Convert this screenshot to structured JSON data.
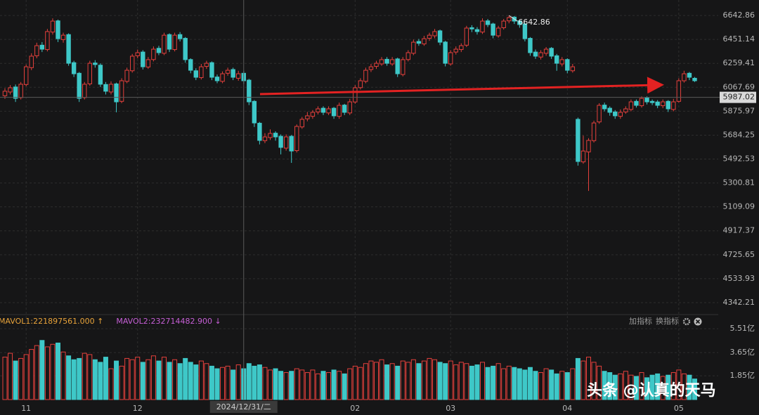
{
  "chart_data": {
    "type": "candlestick",
    "categories": [
      null,
      null,
      null,
      null,
      "11",
      null,
      null,
      null,
      null,
      null,
      null,
      null,
      null,
      null,
      null,
      null,
      null,
      null,
      null,
      null,
      null,
      null,
      null,
      null,
      null,
      "12",
      null,
      null,
      null,
      null,
      null,
      null,
      null,
      null,
      null,
      null,
      null,
      null,
      null,
      null,
      null,
      null,
      null,
      null,
      null,
      "2024/12/31/二",
      null,
      null,
      null,
      null,
      null,
      null,
      null,
      null,
      null,
      null,
      null,
      null,
      null,
      null,
      null,
      null,
      null,
      null,
      null,
      null,
      "02",
      null,
      null,
      null,
      null,
      null,
      null,
      null,
      null,
      null,
      null,
      null,
      null,
      null,
      null,
      null,
      null,
      null,
      "03",
      null,
      null,
      null,
      null,
      null,
      null,
      null,
      null,
      null,
      null,
      null,
      null,
      null,
      null,
      null,
      null,
      null,
      null,
      null,
      null,
      null,
      "04",
      null,
      null,
      null,
      null,
      null,
      null,
      null,
      null,
      null,
      null,
      null,
      null,
      null,
      null,
      null,
      null,
      null,
      null,
      null,
      null,
      "05",
      null,
      null,
      null
    ],
    "open": [
      6000,
      6030,
      6070,
      5985,
      6090,
      6225,
      6320,
      6405,
      6370,
      6510,
      6600,
      6450,
      6490,
      6265,
      6180,
      5985,
      6095,
      6262,
      6245,
      6090,
      6030,
      6095,
      5955,
      6115,
      6200,
      6320,
      6350,
      6230,
      6290,
      6380,
      6340,
      6490,
      6370,
      6490,
      6460,
      6290,
      6200,
      6145,
      6235,
      6265,
      6150,
      6115,
      6180,
      6210,
      6140,
      6180,
      6125,
      5955,
      5780,
      5640,
      5665,
      5700,
      5675,
      5580,
      5675,
      5560,
      5750,
      5815,
      5835,
      5870,
      5900,
      5862,
      5900,
      5835,
      5925,
      5862,
      5950,
      6065,
      6115,
      6210,
      6235,
      6255,
      6292,
      6255,
      6295,
      6170,
      6290,
      6340,
      6435,
      6415,
      6460,
      6480,
      6520,
      6430,
      6255,
      6350,
      6370,
      6405,
      6545,
      6530,
      6510,
      6600,
      6575,
      6480,
      6545,
      6600,
      6630,
      6600,
      6575,
      6460,
      6350,
      6310,
      6340,
      6380,
      6320,
      6255,
      6290,
      6200,
      5811,
      5470,
      5550,
      5640,
      5790,
      5925,
      5900,
      5870,
      5835,
      5870,
      5890,
      5955,
      5920,
      5985,
      5955,
      5950,
      5920,
      5955,
      5890,
      5955,
      6120,
      6180,
      6140
    ],
    "high": [
      6060,
      6085,
      6090,
      6110,
      6250,
      6340,
      6425,
      6430,
      6535,
      6620,
      6610,
      6505,
      6500,
      6280,
      6190,
      6110,
      6280,
      6285,
      6260,
      6110,
      6115,
      6105,
      6140,
      6225,
      6335,
      6370,
      6365,
      6310,
      6395,
      6400,
      6505,
      6500,
      6505,
      6510,
      6470,
      6300,
      6220,
      6255,
      6280,
      6275,
      6170,
      6195,
      6225,
      6225,
      6200,
      6200,
      6135,
      5965,
      5790,
      5700,
      5730,
      5715,
      5690,
      5690,
      5685,
      5770,
      5830,
      5870,
      5885,
      5915,
      5915,
      5915,
      5910,
      5945,
      5935,
      5975,
      6085,
      6140,
      6225,
      6255,
      6280,
      6310,
      6310,
      6310,
      6305,
      6310,
      6365,
      6450,
      6455,
      6480,
      6505,
      6535,
      6530,
      6440,
      6365,
      6395,
      6420,
      6560,
      6565,
      6550,
      6620,
      6615,
      6585,
      6560,
      6615,
      6642.86,
      6638,
      6610,
      6585,
      6470,
      6370,
      6365,
      6390,
      6390,
      6335,
      6310,
      6300,
      6255,
      5825,
      5680,
      5660,
      5800,
      5940,
      5945,
      5915,
      5885,
      5890,
      5915,
      5970,
      5970,
      5995,
      5995,
      5970,
      5965,
      5970,
      5965,
      5975,
      6140,
      6200,
      6190,
      6150
    ],
    "low": [
      5975,
      6010,
      5950,
      5970,
      6075,
      6205,
      6300,
      6350,
      6355,
      6490,
      6430,
      6425,
      6240,
      6150,
      5950,
      5970,
      6080,
      6225,
      6070,
      6010,
      6010,
      5867,
      5940,
      6100,
      6185,
      6300,
      6210,
      6215,
      6275,
      6325,
      6325,
      6350,
      6355,
      6435,
      6265,
      6180,
      6125,
      6130,
      6215,
      6125,
      6100,
      6100,
      6160,
      6125,
      6120,
      6095,
      5925,
      5750,
      5610,
      5620,
      5645,
      5640,
      5530,
      5560,
      5462,
      5545,
      5735,
      5795,
      5815,
      5850,
      5845,
      5845,
      5815,
      5815,
      5845,
      5845,
      5935,
      6050,
      6100,
      6190,
      6215,
      6240,
      6240,
      6240,
      6150,
      6155,
      6275,
      6325,
      6400,
      6400,
      6440,
      6460,
      6405,
      6235,
      6240,
      6330,
      6350,
      6390,
      6510,
      6490,
      6495,
      6550,
      6460,
      6465,
      6530,
      6580,
      6575,
      6545,
      6435,
      6320,
      6295,
      6290,
      6320,
      6295,
      6200,
      6235,
      6180,
      6185,
      5440,
      5455,
      5237,
      5625,
      5775,
      5875,
      5840,
      5815,
      5815,
      5855,
      5875,
      5905,
      5905,
      5930,
      5925,
      5900,
      5900,
      5870,
      5875,
      5945,
      6105,
      6125,
      6110
    ],
    "close": [
      6036,
      6064,
      5979,
      6092,
      6232,
      6317,
      6401,
      6373,
      6514,
      6598,
      6457,
      6485,
      6260,
      6176,
      5979,
      6092,
      6260,
      6250,
      6092,
      6036,
      6092,
      5951,
      6120,
      6204,
      6317,
      6345,
      6232,
      6289,
      6373,
      6345,
      6485,
      6373,
      6485,
      6457,
      6289,
      6204,
      6148,
      6232,
      6260,
      6148,
      6120,
      6176,
      6204,
      6148,
      6176,
      6120,
      5951,
      5782,
      5642,
      5670,
      5698,
      5670,
      5586,
      5670,
      5557,
      5754,
      5811,
      5839,
      5867,
      5895,
      5867,
      5895,
      5839,
      5923,
      5867,
      5951,
      6064,
      6120,
      6204,
      6232,
      6260,
      6289,
      6260,
      6289,
      6176,
      6289,
      6345,
      6429,
      6420,
      6457,
      6485,
      6514,
      6429,
      6260,
      6345,
      6373,
      6401,
      6542,
      6535,
      6514,
      6598,
      6570,
      6485,
      6542,
      6598,
      6626,
      6598,
      6570,
      6457,
      6345,
      6317,
      6345,
      6373,
      6317,
      6260,
      6289,
      6204,
      6232,
      5473,
      5557,
      5642,
      5782,
      5923,
      5895,
      5867,
      5839,
      5867,
      5895,
      5951,
      5923,
      5979,
      5951,
      5945,
      5923,
      5951,
      5895,
      5951,
      6120,
      6176,
      6148,
      6120
    ],
    "ylim": [
      4252,
      6767
    ],
    "yticks": [
      6642.86,
      6451.14,
      6259.41,
      6067.69,
      5875.97,
      5684.25,
      5492.53,
      5300.81,
      5109.09,
      4917.37,
      4725.65,
      4533.93,
      4342.21
    ],
    "grid": true,
    "up_color": "#e5403c",
    "down_color": "#3ec8c8",
    "crosshair_price": 5987.02,
    "volume": {
      "values": [
        3.3,
        3.6,
        3.0,
        3.2,
        3.5,
        3.9,
        4.2,
        4.6,
        4.1,
        4.3,
        4.4,
        3.7,
        3.4,
        3.1,
        3.2,
        3.6,
        3.5,
        3.1,
        2.9,
        3.3,
        2.4,
        3.0,
        2.6,
        3.2,
        3.1,
        3.3,
        2.9,
        3.1,
        3.4,
        3.0,
        3.3,
        2.9,
        3.1,
        2.8,
        3.2,
        2.9,
        2.7,
        3.0,
        2.8,
        2.6,
        2.4,
        2.5,
        2.6,
        2.3,
        2.7,
        2.4,
        2.8,
        2.6,
        2.7,
        2.5,
        2.3,
        2.4,
        2.2,
        2.1,
        2.2,
        2.4,
        2.3,
        2.1,
        2.3,
        2.0,
        2.2,
        2.1,
        2.3,
        2.2,
        2.0,
        2.4,
        2.6,
        2.5,
        2.8,
        3.0,
        2.9,
        3.1,
        2.7,
        2.8,
        2.6,
        3.0,
        2.9,
        3.1,
        2.8,
        3.0,
        3.2,
        3.1,
        2.9,
        2.8,
        3.0,
        2.7,
        2.9,
        2.8,
        2.6,
        2.7,
        2.9,
        2.5,
        2.6,
        2.8,
        2.4,
        2.6,
        2.5,
        2.4,
        2.3,
        2.5,
        2.2,
        2.1,
        2.4,
        2.3,
        2.0,
        2.2,
        2.1,
        2.4,
        3.2,
        3.0,
        3.3,
        2.9,
        2.6,
        2.2,
        2.1,
        1.9,
        2.0,
        2.2,
        1.9,
        1.8,
        2.1,
        1.7,
        1.9,
        2.0,
        1.8,
        1.9,
        2.1,
        2.3,
        2.0,
        1.9,
        1.6
      ],
      "ylim": [
        0,
        6.2
      ],
      "yticks": [
        {
          "value": 5.51,
          "label": "5.51亿"
        },
        {
          "value": 3.65,
          "label": "3.65亿"
        },
        {
          "value": 1.85,
          "label": "1.85亿"
        }
      ],
      "legend": [
        {
          "text": "MAVOL1:221897561.000 ↑",
          "color": "#e8a33a"
        },
        {
          "text": "MAVOL2:232714482.900 ↓",
          "color": "#c65fd6"
        }
      ]
    },
    "buttons": [
      "加指标",
      "换指标"
    ],
    "watermark": "头条 @认真的天马"
  }
}
